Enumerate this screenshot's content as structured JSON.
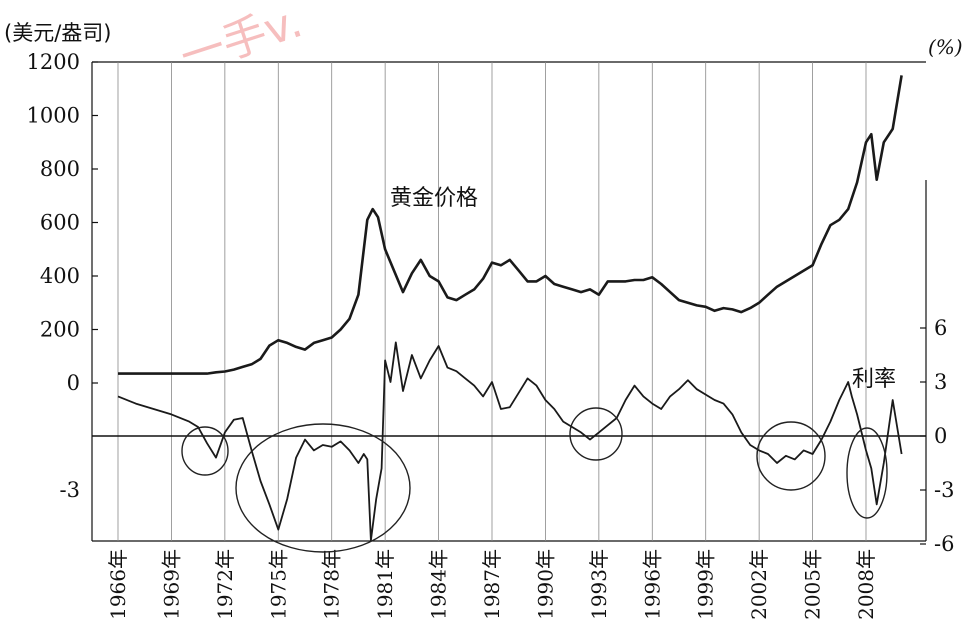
{
  "chart_data": {
    "type": "line",
    "left_axis_unit": "(美元/盎司)",
    "right_axis_unit": "(%)",
    "left_ticks": [
      0,
      200,
      400,
      600,
      800,
      1000,
      1200
    ],
    "left_ylim": [
      0,
      1200
    ],
    "right_ticks": [
      -6,
      -3,
      0,
      3,
      6
    ],
    "right_ylim": [
      -6,
      6
    ],
    "x_tick_labels": [
      "1966年",
      "1969年",
      "1972年",
      "1975年",
      "1978年",
      "1981年",
      "1984年",
      "1987年",
      "1990年",
      "1993年",
      "1996年",
      "1999年",
      "2002年",
      "2005年",
      "2008年"
    ],
    "x_tick_years": [
      1966,
      1969,
      1972,
      1975,
      1978,
      1981,
      1984,
      1987,
      1990,
      1993,
      1996,
      1999,
      2002,
      2005,
      2008
    ],
    "xlim": [
      1966,
      2010.5
    ],
    "grid": "vertical",
    "annotations": {
      "gold": "黄金价格",
      "rate": "利率"
    },
    "watermark": "一手v.",
    "series": [
      {
        "name": "黄金价格",
        "axis": "left",
        "x": [
          1966,
          1967,
          1968,
          1969,
          1970,
          1971,
          1971.5,
          1972,
          1972.5,
          1973,
          1973.5,
          1974,
          1974.5,
          1975,
          1975.5,
          1976,
          1976.5,
          1977,
          1977.5,
          1978,
          1978.5,
          1979,
          1979.5,
          1980,
          1980.3,
          1980.6,
          1981,
          1981.5,
          1982,
          1982.5,
          1983,
          1983.5,
          1984,
          1984.5,
          1985,
          1985.5,
          1986,
          1986.5,
          1987,
          1987.5,
          1988,
          1988.5,
          1989,
          1989.5,
          1990,
          1990.5,
          1991,
          1991.5,
          1992,
          1992.5,
          1993,
          1993.5,
          1994,
          1994.5,
          1995,
          1995.5,
          1996,
          1996.5,
          1997,
          1997.5,
          1998,
          1998.5,
          1999,
          1999.5,
          2000,
          2000.5,
          2001,
          2001.5,
          2002,
          2002.5,
          2003,
          2003.5,
          2004,
          2004.5,
          2005,
          2005.5,
          2006,
          2006.5,
          2007,
          2007.5,
          2008,
          2008.3,
          2008.6,
          2009,
          2009.5,
          2010
        ],
        "y": [
          35,
          35,
          35,
          35,
          35,
          35,
          40,
          43,
          50,
          60,
          70,
          90,
          140,
          160,
          150,
          135,
          125,
          150,
          160,
          170,
          200,
          240,
          330,
          610,
          650,
          620,
          500,
          420,
          340,
          410,
          460,
          400,
          380,
          320,
          310,
          330,
          350,
          390,
          450,
          440,
          460,
          420,
          380,
          380,
          400,
          370,
          360,
          350,
          340,
          350,
          330,
          380,
          380,
          380,
          385,
          385,
          395,
          370,
          340,
          310,
          300,
          290,
          285,
          270,
          280,
          275,
          265,
          280,
          300,
          330,
          360,
          380,
          400,
          420,
          440,
          520,
          590,
          610,
          650,
          750,
          900,
          930,
          760,
          900,
          950,
          1150
        ]
      },
      {
        "name": "利率",
        "axis": "right",
        "x": [
          1966,
          1967,
          1968,
          1969,
          1970,
          1970.5,
          1971,
          1971.5,
          1972,
          1972.5,
          1973,
          1973.5,
          1974,
          1974.5,
          1975,
          1975.5,
          1976,
          1976.5,
          1977,
          1977.5,
          1978,
          1978.5,
          1979,
          1979.5,
          1979.8,
          1980,
          1980.2,
          1980.5,
          1980.8,
          1981,
          1981.3,
          1981.6,
          1982,
          1982.5,
          1983,
          1983.5,
          1984,
          1984.5,
          1985,
          1985.5,
          1986,
          1986.5,
          1987,
          1987.5,
          1988,
          1988.5,
          1989,
          1989.5,
          1990,
          1990.5,
          1991,
          1991.5,
          1992,
          1992.5,
          1993,
          1993.5,
          1994,
          1994.5,
          1995,
          1995.5,
          1996,
          1996.5,
          1997,
          1997.5,
          1998,
          1998.5,
          1999,
          1999.5,
          2000,
          2000.5,
          2001,
          2001.5,
          2002,
          2002.5,
          2003,
          2003.5,
          2004,
          2004.5,
          2005,
          2005.5,
          2006,
          2006.5,
          2007,
          2007.2,
          2007.5,
          2008,
          2008.3,
          2008.6,
          2009,
          2009.5,
          2010
        ],
        "y": [
          2.2,
          1.8,
          1.5,
          1.2,
          0.8,
          0.5,
          -0.4,
          -1.2,
          0.2,
          0.9,
          1.0,
          -0.8,
          -2.5,
          -3.8,
          -5.2,
          -3.5,
          -1.2,
          -0.2,
          -0.8,
          -0.5,
          -0.6,
          -0.3,
          -0.8,
          -1.5,
          -1.0,
          -1.3,
          -5.8,
          -3.5,
          -1.8,
          4.2,
          3.0,
          5.2,
          2.5,
          4.5,
          3.2,
          4.2,
          5.0,
          3.8,
          3.6,
          3.2,
          2.8,
          2.2,
          3.0,
          1.5,
          1.6,
          2.4,
          3.2,
          2.8,
          2.0,
          1.5,
          0.8,
          0.5,
          0.2,
          -0.2,
          0.2,
          0.6,
          1.0,
          2.0,
          2.8,
          2.2,
          1.8,
          1.5,
          2.2,
          2.6,
          3.1,
          2.6,
          2.3,
          2.0,
          1.8,
          1.2,
          0.2,
          -0.5,
          -0.8,
          -1.0,
          -1.5,
          -1.1,
          -1.3,
          -0.8,
          -1.0,
          -0.2,
          0.8,
          2.0,
          3.0,
          2.2,
          1.2,
          -0.8,
          -1.8,
          -3.8,
          -1.5,
          2.0,
          -1.0
        ]
      }
    ]
  }
}
